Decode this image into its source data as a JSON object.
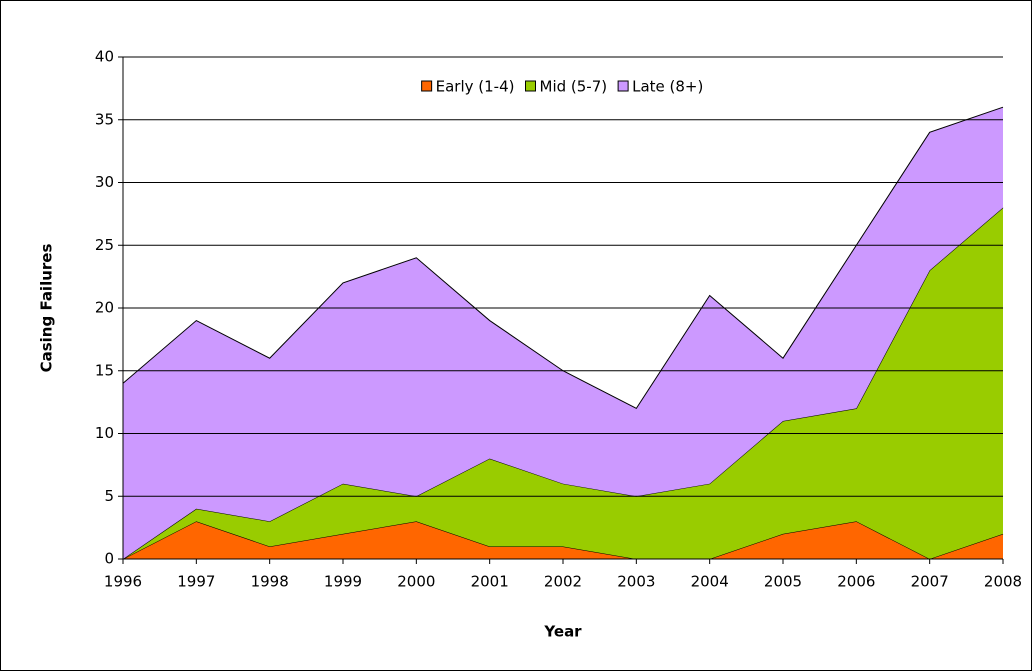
{
  "chart_data": {
    "type": "stacked-area",
    "xlabel": "Year",
    "ylabel": "Casing Failures",
    "categories": [
      "1996",
      "1997",
      "1998",
      "1999",
      "2000",
      "2001",
      "2002",
      "2003",
      "2004",
      "2005",
      "2006",
      "2007",
      "2008"
    ],
    "series": [
      {
        "name": "Early (1-4)",
        "color": "#ff6600",
        "values": [
          0,
          3,
          1,
          2,
          3,
          1,
          1,
          0,
          0,
          2,
          3,
          0,
          2
        ]
      },
      {
        "name": "Mid (5-7)",
        "color": "#99cc00",
        "values": [
          0,
          1,
          2,
          4,
          2,
          7,
          5,
          5,
          6,
          9,
          9,
          23,
          26
        ]
      },
      {
        "name": "Late (8+)",
        "color": "#cc99ff",
        "values": [
          14,
          15,
          13,
          16,
          19,
          11,
          9,
          7,
          15,
          5,
          13,
          11,
          8
        ]
      }
    ],
    "ylim": [
      0,
      40
    ],
    "yticks": [
      0,
      5,
      10,
      15,
      20,
      25,
      30,
      35,
      40
    ],
    "grid": true,
    "legend": "top"
  }
}
